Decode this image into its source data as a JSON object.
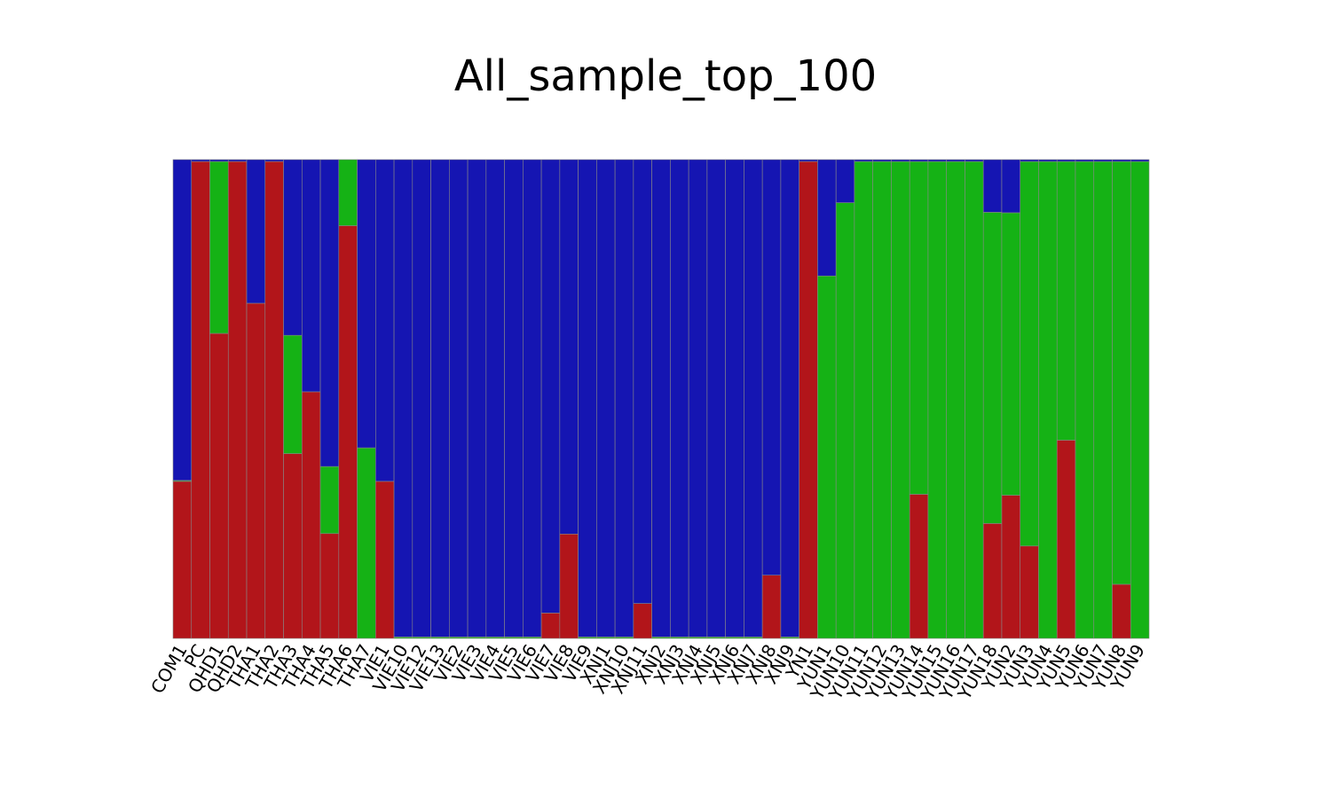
{
  "chart_data": {
    "type": "bar",
    "stacked": true,
    "normalized": true,
    "title": "All_sample_top_100",
    "xlabel": "",
    "ylabel": "",
    "ylim": [
      0,
      1
    ],
    "grid": false,
    "legend": "none",
    "colors": {
      "red": "#b2151a",
      "green": "#15b215",
      "blue": "#1515b2",
      "edge": "#888888"
    },
    "categories": [
      "COM1",
      "PC",
      "QHD1",
      "QHD2",
      "THA1",
      "THA2",
      "THA3",
      "THA4",
      "THA5",
      "THA6",
      "THA7",
      "VIE1",
      "VIE10",
      "VIE12",
      "VIE13",
      "VIE2",
      "VIE3",
      "VIE4",
      "VIE5",
      "VIE6",
      "VIE7",
      "VIE8",
      "VIE9",
      "XNJ1",
      "XNJ10",
      "XNJ11",
      "XNJ2",
      "XNJ3",
      "XNJ4",
      "XNJ5",
      "XNJ6",
      "XNJ7",
      "XNJ8",
      "XNJ9",
      "YN1",
      "YUN1",
      "YUN10",
      "YUN11",
      "YUN12",
      "YUN13",
      "YUN14",
      "YUN15",
      "YUN16",
      "YUN17",
      "YUN18",
      "YUN2",
      "YUN3",
      "YUN4",
      "YUN5",
      "YUN6",
      "YUN7",
      "YUN8",
      "YUN9"
    ],
    "series": [
      {
        "color": "red",
        "values": [
          0.328,
          0.996,
          0.637,
          0.996,
          0.7,
          0.996,
          0.386,
          0.515,
          0.219,
          0.862,
          0.0,
          0.328,
          0.0,
          0.0,
          0.0,
          0.0,
          0.0,
          0.0,
          0.0,
          0.0,
          0.053,
          0.218,
          0.0,
          0.0,
          0.0,
          0.073,
          0.0,
          0.0,
          0.0,
          0.0,
          0.0,
          0.0,
          0.132,
          0.0,
          0.996,
          0.0,
          0.0,
          0.0,
          0.0,
          0.0,
          0.301,
          0.0,
          0.0,
          0.0,
          0.24,
          0.299,
          0.193,
          0.0,
          0.414,
          0.0,
          0.0,
          0.113,
          0.0
        ]
      },
      {
        "color": "green",
        "values": [
          0.002,
          0.0,
          0.359,
          0.0,
          0.0,
          0.0,
          0.247,
          0.0,
          0.14,
          0.138,
          0.398,
          0.0,
          0.003,
          0.003,
          0.003,
          0.003,
          0.003,
          0.003,
          0.003,
          0.003,
          0.0,
          0.0,
          0.003,
          0.003,
          0.003,
          0.0,
          0.003,
          0.003,
          0.003,
          0.003,
          0.003,
          0.003,
          0.0,
          0.003,
          0.0,
          0.757,
          0.91,
          0.996,
          0.996,
          0.996,
          0.695,
          0.996,
          0.996,
          0.996,
          0.65,
          0.59,
          0.803,
          0.996,
          0.582,
          0.996,
          0.996,
          0.883,
          0.996
        ]
      },
      {
        "color": "blue",
        "values": [
          0.67,
          0.004,
          0.004,
          0.004,
          0.3,
          0.004,
          0.367,
          0.485,
          0.641,
          0.0,
          0.602,
          0.672,
          0.997,
          0.997,
          0.997,
          0.997,
          0.997,
          0.997,
          0.997,
          0.997,
          0.947,
          0.782,
          0.997,
          0.997,
          0.997,
          0.927,
          0.997,
          0.997,
          0.997,
          0.997,
          0.997,
          0.997,
          0.868,
          0.997,
          0.004,
          0.243,
          0.09,
          0.004,
          0.004,
          0.004,
          0.004,
          0.004,
          0.004,
          0.004,
          0.11,
          0.111,
          0.004,
          0.004,
          0.004,
          0.004,
          0.004,
          0.004,
          0.004
        ]
      }
    ]
  }
}
